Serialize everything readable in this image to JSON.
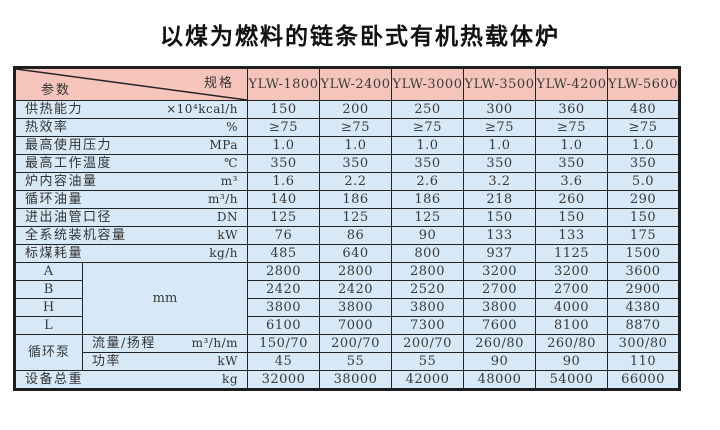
{
  "page": {
    "title": "以煤为燃料的链条卧式有机热载体炉"
  },
  "colors": {
    "header_bg": "#f5c5bb",
    "cell_bg": "#d7e9f6",
    "border": "#1e1e1e",
    "text": "#3a3a3a"
  },
  "table": {
    "corner": {
      "top_right": "规格",
      "bottom_left": "参数"
    },
    "models": [
      "YLW-1800",
      "YLW-2400",
      "YLW-3000",
      "YLW-3500",
      "YLW-4200",
      "YLW-5600"
    ],
    "param_rows": [
      {
        "label": "供热能力",
        "unit": "×10⁴kcal/h",
        "values": [
          "150",
          "200",
          "250",
          "300",
          "360",
          "480"
        ]
      },
      {
        "label": "热效率",
        "unit": "%",
        "values": [
          "≥75",
          "≥75",
          "≥75",
          "≥75",
          "≥75",
          "≥75"
        ]
      },
      {
        "label": "最高使用压力",
        "unit": "MPa",
        "values": [
          "1.0",
          "1.0",
          "1.0",
          "1.0",
          "1.0",
          "1.0"
        ]
      },
      {
        "label": "最高工作温度",
        "unit": "℃",
        "values": [
          "350",
          "350",
          "350",
          "350",
          "350",
          "350"
        ]
      },
      {
        "label": "炉内容油量",
        "unit": "m³",
        "values": [
          "1.6",
          "2.2",
          "2.6",
          "3.2",
          "3.6",
          "5.0"
        ]
      },
      {
        "label": "循环油量",
        "unit": "m³/h",
        "values": [
          "140",
          "186",
          "186",
          "218",
          "260",
          "290"
        ]
      },
      {
        "label": "进出油管口径",
        "unit": "DN",
        "values": [
          "125",
          "125",
          "125",
          "150",
          "150",
          "150"
        ]
      },
      {
        "label": "全系统装机容量",
        "unit": "kW",
        "values": [
          "76",
          "86",
          "90",
          "133",
          "133",
          "175"
        ]
      },
      {
        "label": "标煤耗量",
        "unit": "kg/h",
        "values": [
          "485",
          "640",
          "800",
          "937",
          "1125",
          "1500"
        ]
      }
    ],
    "dimensions": {
      "unit": "mm",
      "rows": [
        {
          "letter": "A",
          "values": [
            "2800",
            "2800",
            "2800",
            "3200",
            "3200",
            "3600"
          ]
        },
        {
          "letter": "B",
          "values": [
            "2420",
            "2420",
            "2520",
            "2700",
            "2700",
            "2900"
          ]
        },
        {
          "letter": "H",
          "values": [
            "3800",
            "3800",
            "3800",
            "3800",
            "4000",
            "4380"
          ]
        },
        {
          "letter": "L",
          "values": [
            "6100",
            "7000",
            "7300",
            "7600",
            "8100",
            "8870"
          ]
        }
      ]
    },
    "pump": {
      "label": "循环泵",
      "rows": [
        {
          "label": "流量/扬程",
          "unit": "m³/h/m",
          "values": [
            "150/70",
            "200/70",
            "200/70",
            "260/80",
            "260/80",
            "300/80"
          ]
        },
        {
          "label": "功率",
          "unit": "kW",
          "values": [
            "45",
            "55",
            "55",
            "90",
            "90",
            "110"
          ]
        }
      ]
    },
    "total": {
      "label": "设备总重",
      "unit": "kg",
      "values": [
        "32000",
        "38000",
        "42000",
        "48000",
        "54000",
        "66000"
      ]
    }
  }
}
